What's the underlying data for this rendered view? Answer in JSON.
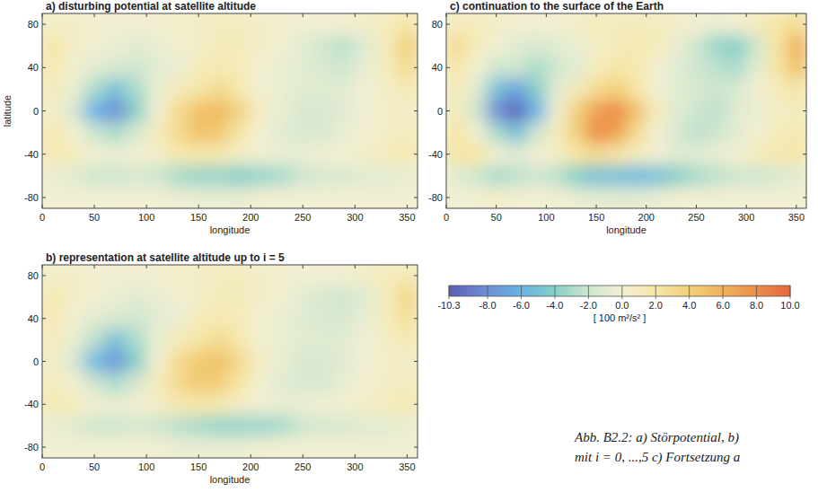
{
  "chart_data": [
    {
      "type": "heatmap",
      "title": "a)  disturbing potential at satellite altitude",
      "x_label": "longitude",
      "y_label": "latitude",
      "xlim": [
        0,
        360
      ],
      "ylim": [
        -90,
        90
      ],
      "xticks": [
        0,
        50,
        100,
        150,
        200,
        250,
        300,
        350
      ],
      "yticks": [
        -80,
        -40,
        0,
        40,
        80
      ],
      "x": [
        10,
        30,
        50,
        70,
        90,
        110,
        130,
        150,
        170,
        190,
        210,
        230,
        250,
        270,
        290,
        310,
        330,
        350
      ],
      "y": [
        80,
        60,
        40,
        20,
        0,
        -20,
        -40,
        -60,
        -80
      ],
      "cells": [
        [
          0.5,
          0.5,
          0,
          0,
          0,
          0,
          0.5,
          0.5,
          1,
          1,
          0.5,
          0,
          0,
          0,
          0,
          0.5,
          1,
          2
        ],
        [
          2,
          0.5,
          0,
          -0.5,
          -1,
          -0.5,
          0,
          0.5,
          1,
          1,
          0.5,
          0,
          -1,
          -2,
          -2.5,
          -1,
          1,
          4
        ],
        [
          1.5,
          0,
          -1,
          -1.5,
          -2,
          -1,
          -0.5,
          1,
          1.5,
          1,
          0,
          -0.5,
          -1,
          -1.5,
          -2,
          -0.5,
          1,
          3
        ],
        [
          1,
          -0.5,
          -3,
          -5,
          -3,
          -0.5,
          1,
          2,
          3,
          1.5,
          0,
          -0.5,
          -1,
          -1,
          -1,
          0,
          0.5,
          1.5
        ],
        [
          0.5,
          -1.5,
          -6,
          -8,
          -4,
          0,
          3,
          5,
          5.5,
          3.5,
          0.5,
          -0.5,
          -1.5,
          -1.5,
          -1,
          0,
          0.5,
          0.5
        ],
        [
          1.5,
          0,
          -2,
          -3,
          -1.5,
          1,
          3,
          5,
          4.5,
          2,
          0,
          -1,
          -1.5,
          -1.5,
          -0.5,
          0,
          0.5,
          1
        ],
        [
          1.5,
          1,
          0,
          -0.5,
          0,
          0.5,
          1.5,
          2,
          1.5,
          0.5,
          0,
          -0.5,
          -0.5,
          0,
          0,
          0.5,
          1,
          1.5
        ],
        [
          -0.5,
          -1,
          -2,
          -2,
          -1.5,
          -2,
          -3,
          -3.5,
          -3.5,
          -4,
          -3.5,
          -3,
          -2,
          -1.5,
          -1.5,
          -1,
          -1,
          -0.5
        ],
        [
          0,
          0,
          0,
          0,
          0,
          0,
          -0.5,
          -0.5,
          -0.5,
          -0.5,
          0,
          0,
          0,
          0,
          0,
          0,
          0,
          0
        ]
      ]
    },
    {
      "type": "heatmap",
      "title": "b)  representation at satellite altitude up to i = 5",
      "x_label": "longitude",
      "xlim": [
        0,
        360
      ],
      "ylim": [
        -90,
        90
      ],
      "xticks": [
        0,
        50,
        100,
        150,
        200,
        250,
        300,
        350
      ],
      "yticks": [
        -80,
        -40,
        0,
        40,
        80
      ],
      "x": [
        10,
        30,
        50,
        70,
        90,
        110,
        130,
        150,
        170,
        190,
        210,
        230,
        250,
        270,
        290,
        310,
        330,
        350
      ],
      "y": [
        80,
        60,
        40,
        20,
        0,
        -20,
        -40,
        -60,
        -80
      ],
      "cells": [
        [
          0.5,
          0.5,
          0,
          0,
          0,
          0,
          0.5,
          0.5,
          1,
          1,
          0.5,
          0,
          0,
          0,
          0,
          0.5,
          1,
          1.5
        ],
        [
          1.5,
          0.5,
          0,
          -0.5,
          -1,
          -0.5,
          0,
          0.5,
          1,
          1,
          0.5,
          0,
          -1,
          -1.5,
          -2,
          -1,
          1,
          3.5
        ],
        [
          1.5,
          0,
          -1,
          -1.5,
          -2,
          -1,
          -0.5,
          1,
          1.5,
          1,
          0,
          -0.5,
          -1,
          -1.5,
          -1.5,
          -0.5,
          1,
          2.5
        ],
        [
          1,
          -0.5,
          -2.5,
          -5,
          -3,
          -0.5,
          1,
          2,
          3,
          1.5,
          0,
          -0.5,
          -1,
          -1,
          -1,
          0,
          0.5,
          1.5
        ],
        [
          0.5,
          -1.5,
          -5.5,
          -7.5,
          -4,
          0,
          3,
          4.5,
          5,
          3,
          0.5,
          -0.5,
          -1.5,
          -1.5,
          -1,
          0,
          0.5,
          0.5
        ],
        [
          1,
          0,
          -2,
          -3,
          -1.5,
          1,
          3,
          4.5,
          4,
          2,
          0,
          -1,
          -1.5,
          -1.5,
          -0.5,
          0,
          0.5,
          1
        ],
        [
          1.5,
          1,
          0,
          -0.5,
          0,
          0.5,
          1.5,
          2,
          1.5,
          0.5,
          0,
          -0.5,
          -0.5,
          0,
          0,
          0.5,
          1,
          1.5
        ],
        [
          -0.5,
          -1,
          -2,
          -2,
          -1.5,
          -2,
          -2.5,
          -3,
          -3.5,
          -3.5,
          -3.5,
          -3,
          -2,
          -1.5,
          -1.5,
          -1,
          -1,
          -0.5
        ],
        [
          0,
          0,
          0,
          0,
          0,
          0,
          -0.5,
          -0.5,
          -0.5,
          -0.5,
          0,
          0,
          0,
          0,
          0,
          0,
          0,
          0
        ]
      ]
    },
    {
      "type": "heatmap",
      "title": "c)  continuation to the surface of the Earth",
      "x_label": "longitude",
      "xlim": [
        0,
        360
      ],
      "ylim": [
        -90,
        90
      ],
      "xticks": [
        0,
        50,
        100,
        150,
        200,
        250,
        300,
        350
      ],
      "yticks": [
        -80,
        -40,
        0,
        40,
        80
      ],
      "x": [
        10,
        30,
        50,
        70,
        90,
        110,
        130,
        150,
        170,
        190,
        210,
        230,
        250,
        270,
        290,
        310,
        330,
        350
      ],
      "y": [
        80,
        60,
        40,
        20,
        0,
        -20,
        -40,
        -60,
        -80
      ],
      "cells": [
        [
          1,
          1,
          0.5,
          0,
          0,
          0,
          0.5,
          1,
          1,
          1,
          1,
          0.5,
          0,
          -0.5,
          0,
          1,
          2,
          3
        ],
        [
          3,
          1,
          0,
          -1,
          -1.5,
          -1,
          -0.5,
          0.5,
          1,
          1.5,
          1,
          -0.5,
          -2,
          -3.5,
          -4,
          -2,
          2,
          6
        ],
        [
          2,
          0,
          -2,
          -2,
          -3,
          -2,
          -1,
          1,
          2,
          1.5,
          0,
          -1,
          -2,
          -2.5,
          -3,
          -1,
          2,
          5
        ],
        [
          1,
          -1,
          -5,
          -7,
          -4,
          -1,
          1,
          3,
          4,
          2,
          0,
          -1,
          -1.5,
          -2,
          -1.5,
          0,
          1,
          2
        ],
        [
          1,
          -2,
          -8,
          -10,
          -6,
          0,
          4,
          7,
          8,
          5,
          1,
          -1,
          -2,
          -2.5,
          -1,
          -0.5,
          0.5,
          1
        ],
        [
          2,
          0,
          -3,
          -5,
          -2,
          1,
          4,
          8,
          7,
          3,
          0,
          -1.5,
          -2.5,
          -2,
          -1,
          0,
          1,
          1.5
        ],
        [
          2,
          2,
          0,
          -1,
          0,
          0.5,
          2,
          3,
          2,
          1,
          0,
          -1,
          -1,
          -0.5,
          0,
          1,
          1.5,
          2
        ],
        [
          -1,
          -2,
          -3,
          -2.5,
          -2,
          -2.5,
          -4,
          -5,
          -5,
          -5.5,
          -5,
          -4,
          -3,
          -2.5,
          -2,
          -2,
          -1.5,
          -1
        ],
        [
          0,
          0,
          0.5,
          0,
          0,
          0,
          -0.5,
          -1,
          -1,
          -1,
          -0.5,
          0,
          0,
          0,
          0,
          0,
          0,
          0
        ]
      ]
    }
  ],
  "colorbar": {
    "label": "[ 100 m²/s² ]",
    "range": [
      -10.3,
      10
    ],
    "ticks": [
      -10.3,
      {
        "value": -8,
        "label": "-8.0"
      },
      {
        "value": -6,
        "label": "-6.0"
      },
      {
        "value": -4,
        "label": "-4.0"
      },
      {
        "value": -2,
        "label": "-2.0"
      },
      {
        "value": 0,
        "label": "0.0"
      },
      {
        "value": 2,
        "label": "2.0"
      },
      {
        "value": 4,
        "label": "4.0"
      },
      {
        "value": 6,
        "label": "6.0"
      },
      {
        "value": 8,
        "label": "8.0"
      },
      {
        "value": 10,
        "label": "10.0"
      }
    ],
    "colors": [
      "#5b5fb4",
      "#6f8fd8",
      "#66b3e6",
      "#86cfc8",
      "#cfe6cf",
      "#f2efd2",
      "#f6e6a6",
      "#f2d07a",
      "#efb25a",
      "#ec8d47",
      "#e4683a"
    ]
  },
  "caption": [
    "Abb. B2.2: a) Störpotential, b)",
    "mit i = 0, ...,5 c) Fortsetzung a"
  ]
}
